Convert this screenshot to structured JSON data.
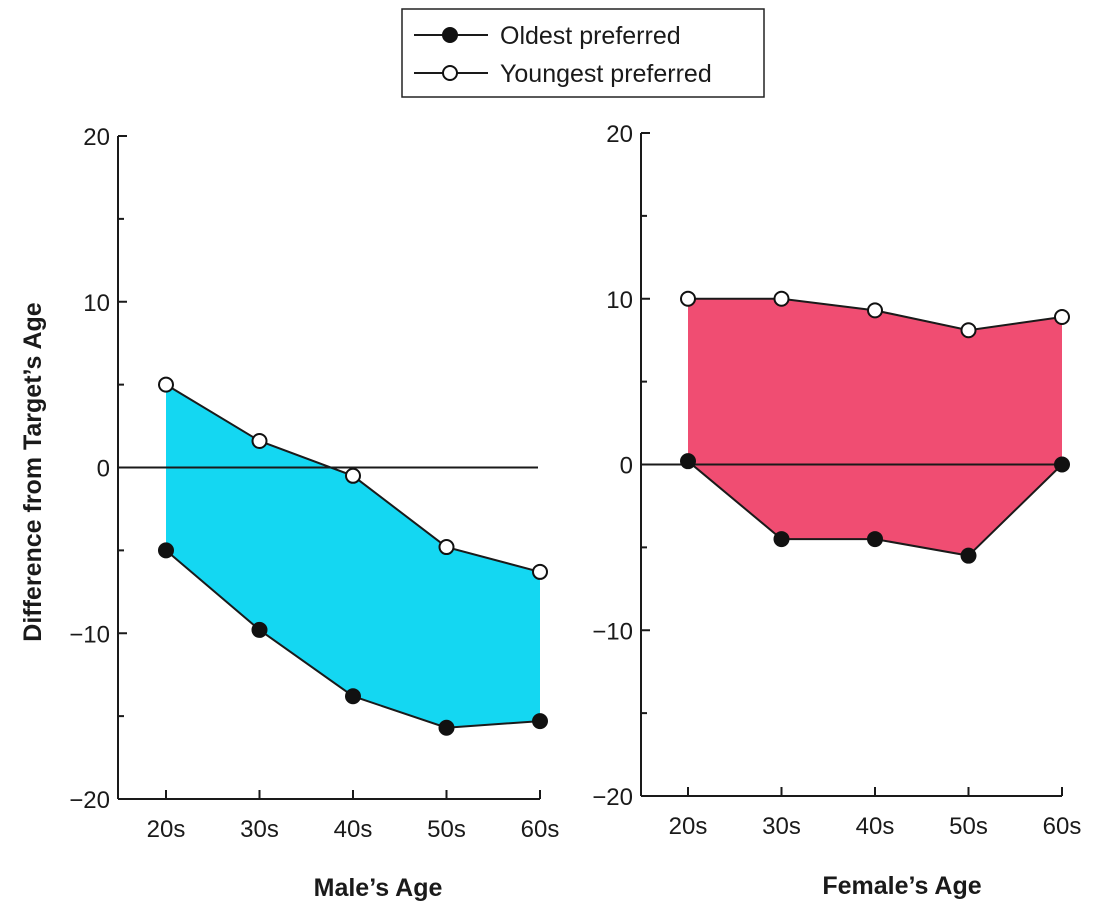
{
  "legend": {
    "entries": [
      {
        "label": "Oldest preferred",
        "marker": "filled-circle"
      },
      {
        "label": "Youngest preferred",
        "marker": "open-circle"
      }
    ],
    "placement": "top-center"
  },
  "colors": {
    "male_fill": "#14d7f2",
    "female_fill": "#f04d72",
    "line": "#1a1a1a",
    "marker_fill_filled": "#111111",
    "marker_fill_open": "#ffffff"
  },
  "chart_data": [
    {
      "type": "line",
      "panel": "male",
      "xlabel": "Male’s Age",
      "ylabel": "Difference from Target’s Age",
      "categories": [
        "20s",
        "30s",
        "40s",
        "50s",
        "60s"
      ],
      "ylim": [
        -20,
        20
      ],
      "yticks": [
        20,
        10,
        0,
        -10,
        -20
      ],
      "ytick_labels": [
        "20",
        "10",
        "0",
        "−10",
        "−20"
      ],
      "grid": false,
      "zero_line": true,
      "fill_between_series": true,
      "series": [
        {
          "name": "Oldest preferred",
          "values": [
            -5,
            -9.8,
            -13.8,
            -15.7,
            -15.3
          ]
        },
        {
          "name": "Youngest preferred",
          "values": [
            5,
            1.6,
            -0.5,
            -4.8,
            -6.3
          ]
        }
      ]
    },
    {
      "type": "line",
      "panel": "female",
      "xlabel": "Female’s Age",
      "ylabel": "",
      "categories": [
        "20s",
        "30s",
        "40s",
        "50s",
        "60s"
      ],
      "ylim": [
        -20,
        20
      ],
      "yticks": [
        20,
        10,
        0,
        -10,
        -20
      ],
      "ytick_labels": [
        "20",
        "10",
        "0",
        "−10",
        "−20"
      ],
      "grid": false,
      "zero_line": true,
      "fill_between_series": true,
      "series": [
        {
          "name": "Oldest preferred",
          "values": [
            0.2,
            -4.5,
            -4.5,
            -5.5,
            0
          ]
        },
        {
          "name": "Youngest preferred",
          "values": [
            10,
            10,
            9.3,
            8.1,
            8.9
          ]
        }
      ]
    }
  ]
}
